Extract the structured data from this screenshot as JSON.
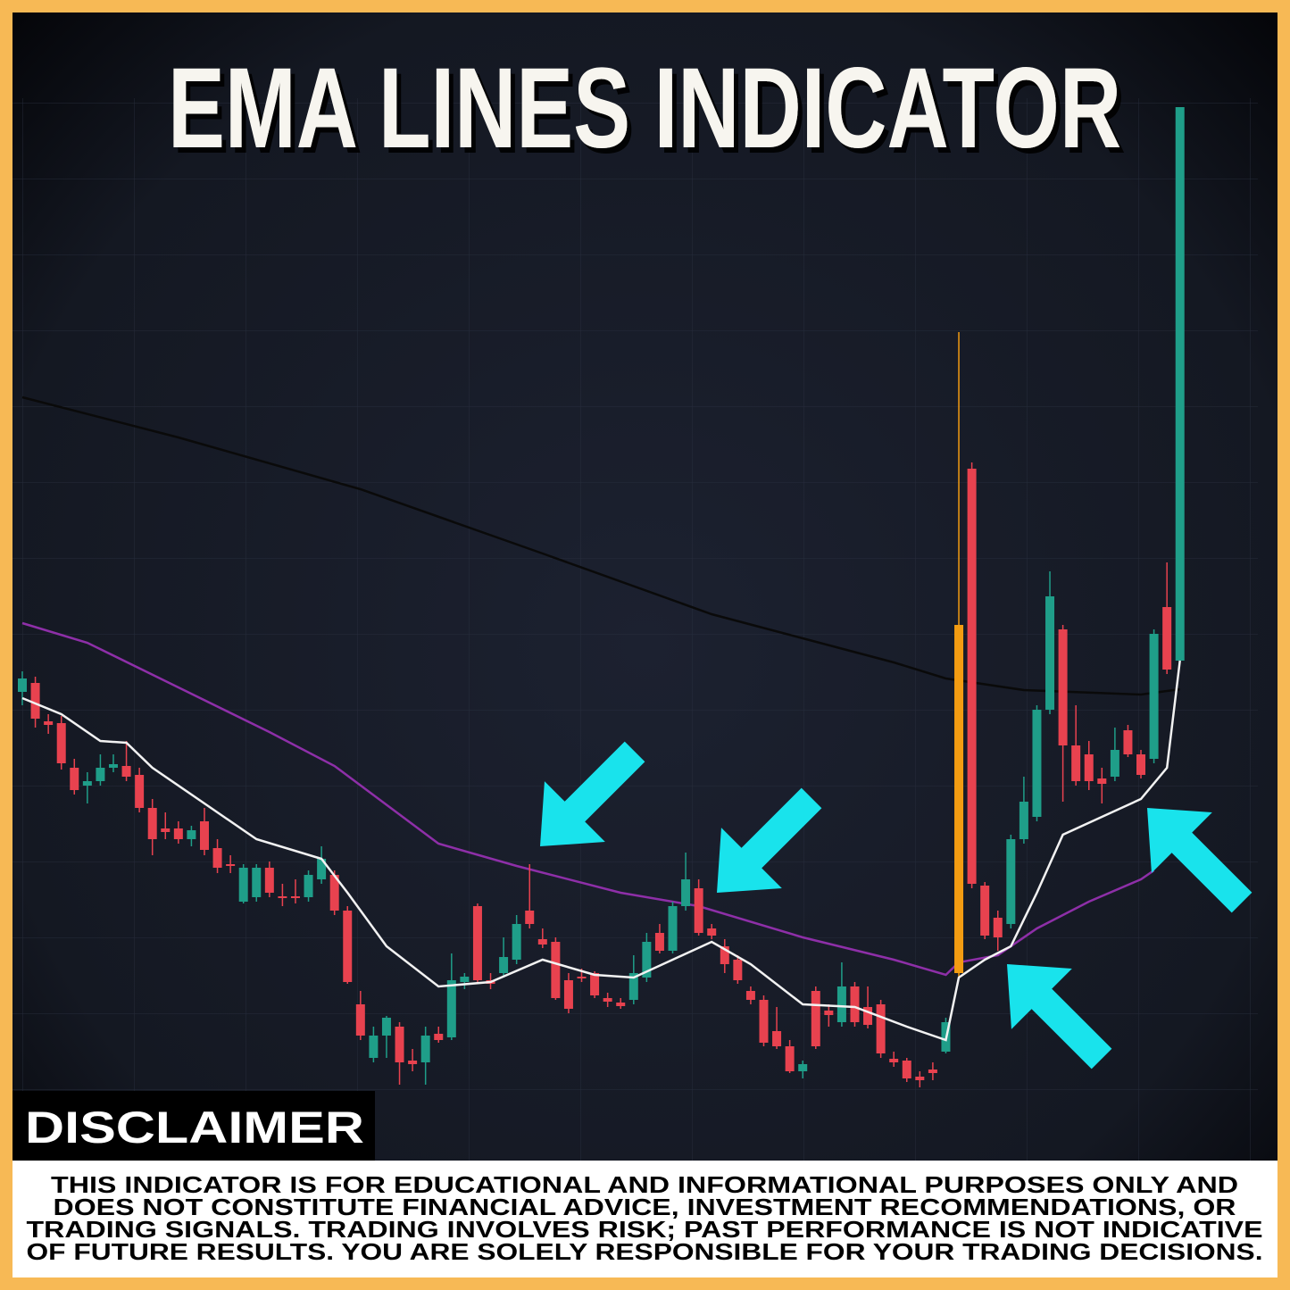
{
  "chart_data": {
    "type": "candlestick",
    "title": "EMA LINES INDICATOR",
    "ylim": [
      0,
      1200
    ],
    "up_color": "#1f9e89",
    "down_color": "#e8424f",
    "highlight": {
      "index": 72,
      "color": "#f39c12"
    },
    "open": [
      525,
      535,
      492,
      490,
      440,
      420,
      425,
      440,
      442,
      432,
      395,
      372,
      372,
      360,
      380,
      350,
      332,
      290,
      295,
      328,
      296,
      296,
      295,
      315,
      320,
      280,
      175,
      115,
      140,
      150,
      112,
      110,
      142,
      138,
      200,
      285,
      202,
      210,
      225,
      280,
      248,
      245,
      202,
      206,
      210,
      182,
      177,
      180,
      205,
      255,
      235,
      285,
      305,
      260,
      240,
      225,
      190,
      180,
      145,
      128,
      100,
      190,
      168,
      155,
      195,
      172,
      175,
      114,
      112,
      94,
      102,
      122,
      210,
      775,
      308,
      272,
      265,
      360,
      385,
      505,
      595,
      465,
      455,
      428,
      430,
      482,
      455,
      450,
      620,
      560
    ],
    "high": [
      548,
      542,
      500,
      498,
      450,
      435,
      455,
      455,
      470,
      440,
      405,
      390,
      380,
      375,
      395,
      360,
      342,
      332,
      332,
      335,
      310,
      315,
      325,
      352,
      325,
      285,
      190,
      150,
      162,
      155,
      125,
      150,
      150,
      232,
      210,
      288,
      210,
      250,
      275,
      332,
      260,
      250,
      210,
      215,
      212,
      188,
      182,
      230,
      255,
      265,
      290,
      345,
      315,
      265,
      248,
      230,
      195,
      185,
      172,
      135,
      112,
      195,
      175,
      222,
      200,
      195,
      180,
      122,
      115,
      100,
      110,
      160,
      928,
      782,
      312,
      280,
      365,
      430,
      510,
      660,
      600,
      510,
      470,
      440,
      485,
      488,
      460,
      595,
      670,
      1180
    ],
    "low": [
      510,
      485,
      478,
      438,
      410,
      400,
      420,
      435,
      425,
      390,
      342,
      360,
      355,
      352,
      342,
      322,
      322,
      288,
      290,
      295,
      285,
      288,
      290,
      310,
      275,
      198,
      135,
      110,
      115,
      85,
      100,
      85,
      132,
      135,
      192,
      198,
      192,
      205,
      220,
      260,
      238,
      180,
      165,
      200,
      182,
      172,
      170,
      175,
      200,
      232,
      232,
      280,
      252,
      248,
      210,
      198,
      175,
      128,
      125,
      98,
      92,
      125,
      150,
      150,
      150,
      148,
      115,
      105,
      88,
      82,
      90,
      120,
      205,
      305,
      248,
      235,
      260,
      355,
      380,
      500,
      402,
      420,
      415,
      400,
      425,
      452,
      428,
      445,
      545,
      558
    ],
    "close": [
      540,
      495,
      488,
      445,
      415,
      425,
      440,
      444,
      430,
      395,
      360,
      368,
      360,
      370,
      348,
      328,
      330,
      328,
      328,
      300,
      294,
      294,
      320,
      338,
      280,
      200,
      140,
      140,
      160,
      110,
      108,
      140,
      135,
      202,
      206,
      202,
      198,
      228,
      265,
      265,
      242,
      182,
      170,
      204,
      185,
      178,
      173,
      210,
      245,
      235,
      285,
      315,
      255,
      252,
      220,
      202,
      180,
      132,
      128,
      100,
      108,
      128,
      163,
      195,
      155,
      152,
      120,
      110,
      92,
      90,
      98,
      155,
      600,
      310,
      252,
      250,
      360,
      402,
      505,
      632,
      465,
      425,
      425,
      422,
      460,
      455,
      432,
      590,
      550,
      1180
    ],
    "lines": [
      {
        "color": "#0a0a0a",
        "x": [
          0,
          12,
          26,
          40,
          53,
          67,
          71,
          77,
          86,
          89
        ],
        "values": [
          855,
          810,
          752,
          680,
          612,
          558,
          540,
          527,
          522,
          528
        ]
      },
      {
        "color": "#8e2fa8",
        "x": [
          0,
          5,
          12,
          19,
          24,
          32,
          38,
          46,
          52,
          60,
          67,
          71,
          72,
          75,
          78,
          82,
          86,
          87
        ],
        "values": [
          602,
          580,
          530,
          480,
          442,
          355,
          330,
          300,
          285,
          250,
          225,
          208,
          222,
          230,
          260,
          290,
          315,
          325
        ]
      },
      {
        "color": "#f2f2f2",
        "x": [
          0,
          3,
          6,
          8,
          10,
          14,
          18,
          23,
          25,
          28,
          32,
          36,
          40,
          44,
          47,
          50,
          53,
          56,
          60,
          64,
          68,
          71,
          72,
          74,
          76,
          78,
          80,
          83,
          86,
          88,
          89
        ],
        "values": [
          518,
          500,
          470,
          468,
          440,
          400,
          360,
          338,
          300,
          240,
          195,
          200,
          225,
          208,
          205,
          225,
          245,
          220,
          175,
          172,
          150,
          135,
          205,
          225,
          240,
          300,
          365,
          385,
          405,
          440,
          560
        ]
      }
    ]
  },
  "disclaimer": {
    "heading": "DISCLAIMER",
    "lines": [
      "THIS INDICATOR IS FOR EDUCATIONAL AND INFORMATIONAL PURPOSES ONLY AND",
      "DOES NOT CONSTITUTE FINANCIAL ADVICE, INVESTMENT RECOMMENDATIONS, OR",
      "TRADING SIGNALS. TRADING INVOLVES RISK; PAST PERFORMANCE IS NOT INDICATIVE",
      "OF FUTURE RESULTS. YOU ARE SOLELY RESPONSIBLE FOR YOUR TRADING DECISIONS."
    ]
  }
}
